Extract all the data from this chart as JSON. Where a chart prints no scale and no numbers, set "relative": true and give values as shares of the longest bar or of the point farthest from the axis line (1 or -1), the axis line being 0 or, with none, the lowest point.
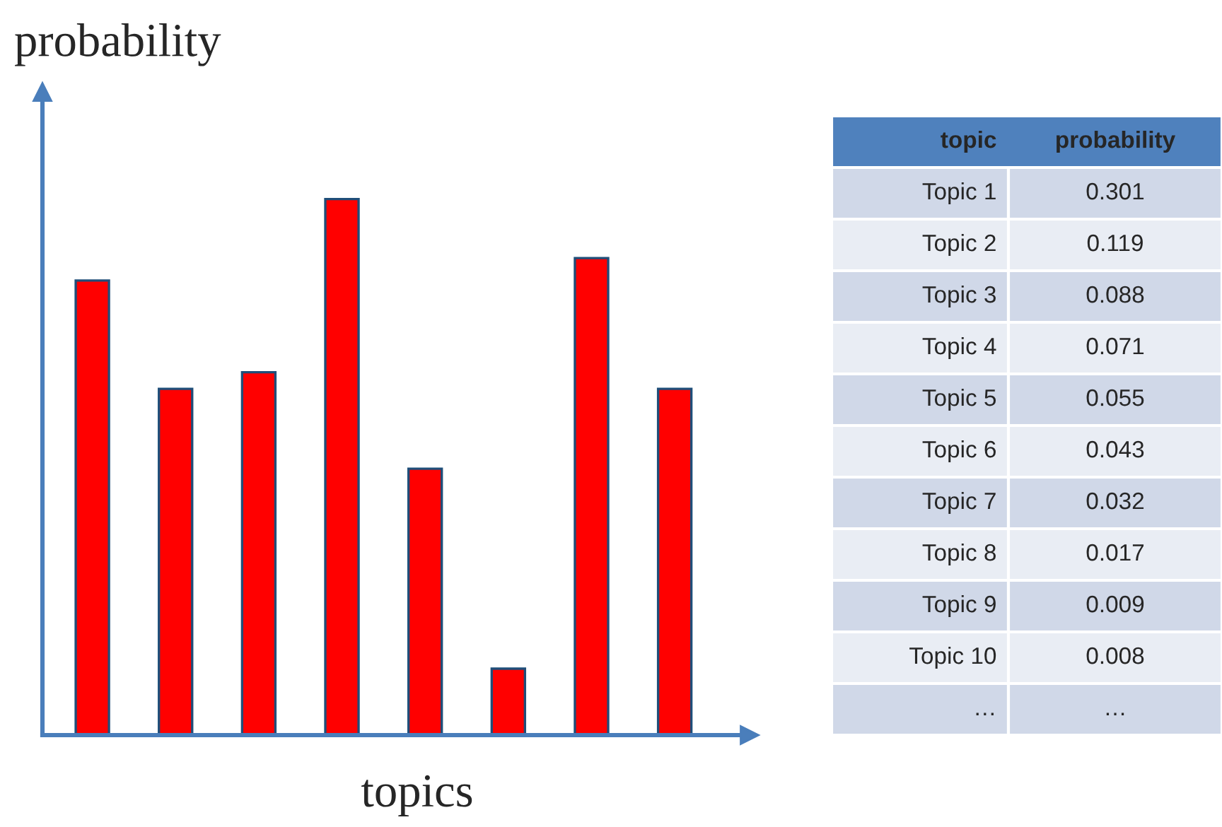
{
  "chart_data": [
    {
      "type": "bar",
      "relative": true,
      "xlabel": "topics",
      "ylabel": "probability",
      "categories": [
        null,
        null,
        null,
        null,
        null,
        null,
        null,
        null
      ],
      "values": [
        0.848,
        0.646,
        0.677,
        1,
        0.497,
        0.124,
        0.89,
        0.646
      ],
      "color": "#ff0000",
      "grid": false,
      "legend": false
    },
    {
      "type": "other",
      "xlabel": "topic",
      "ylabel": "probability",
      "categories": [
        "Topic 1",
        "Topic 2",
        "Topic 3",
        "Topic 4",
        "Topic 5",
        "Topic 6",
        "Topic 7",
        "Topic 8",
        "Topic 9",
        "Topic 10",
        "…"
      ],
      "values": [
        0.301,
        0.119,
        0.088,
        0.071,
        0.055,
        0.043,
        0.032,
        0.017,
        0.009,
        0.008,
        null
      ],
      "data_labels": true,
      "annotations": [
        "…"
      ]
    }
  ]
}
